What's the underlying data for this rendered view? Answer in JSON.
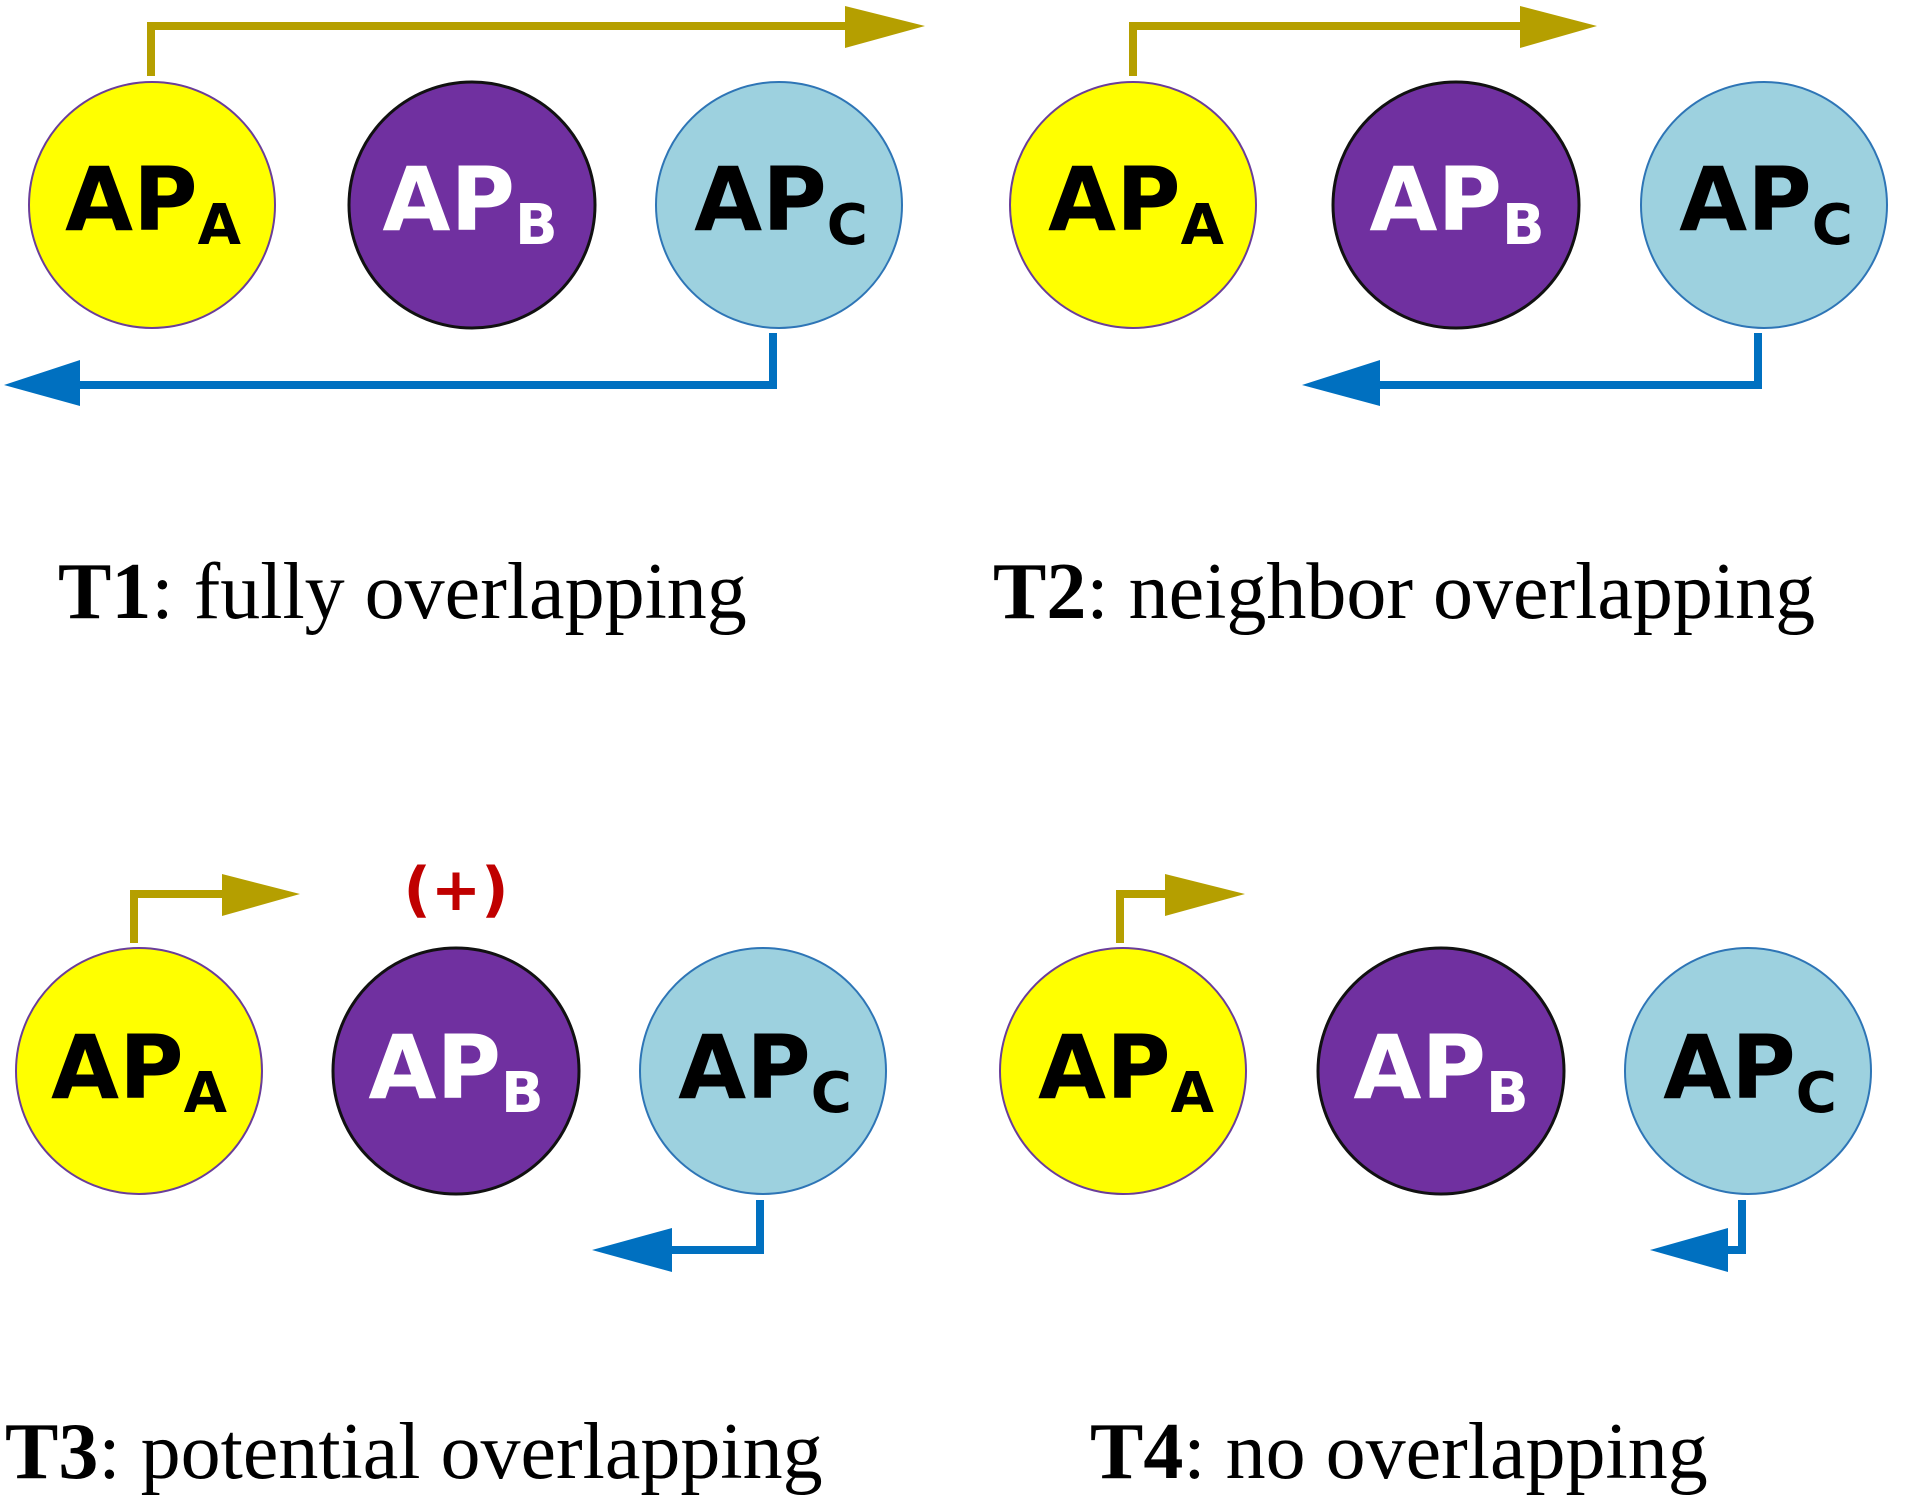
{
  "colors": {
    "ap_a_fill": "#ffff00",
    "ap_b_fill": "#7030a0",
    "ap_c_fill": "#9dd1df",
    "ap_a_text": "#000000",
    "ap_b_text": "#ffffff",
    "ap_c_text": "#000000",
    "right_arrow": "#b59f00",
    "left_arrow": "#0070c0",
    "marker": "#c00000"
  },
  "labels": {
    "ap": "AP",
    "a": "A",
    "b": "B",
    "c": "C"
  },
  "panels": [
    {
      "tag": "T1",
      "caption": ": fully overlapping"
    },
    {
      "tag": "T2",
      "caption": ": neighbor overlapping"
    },
    {
      "tag": "T3",
      "caption": ": potential overlapping",
      "marker": "(+)"
    },
    {
      "tag": "T4",
      "caption": ": no overlapping"
    }
  ]
}
